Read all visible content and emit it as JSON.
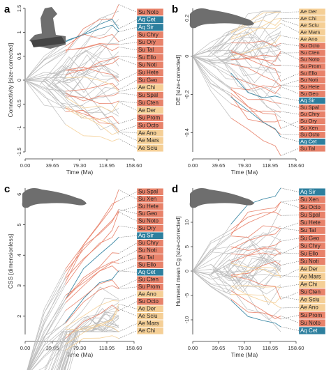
{
  "colors": {
    "su": "#e8826a",
    "ae": "#f5cf96",
    "aq": "#2d7f9e",
    "grey": "#bdbdbd",
    "axis": "#333333",
    "bone": "#6e6e6e"
  },
  "chart_data": [
    {
      "panel": "a",
      "type": "line",
      "subtype": "phylomorphospace",
      "xlabel": "Time (Ma)",
      "ylabel": "Connectivity [size-corrected]",
      "xticks": [
        "0.00",
        "39.65",
        "79.30",
        "118.95",
        "158.60"
      ],
      "yticks": [
        "-1.5",
        "-1",
        "-0.5",
        "0",
        "0.5",
        "1",
        "1.5"
      ],
      "ylim": [
        -1.5,
        1.5
      ],
      "icon": "vertebra-icon",
      "tip_labels": [
        "Su Noto",
        "Aq Cet",
        "Aq Sir",
        "Su Chry",
        "Su Ory",
        "Su Tal",
        "Su Ello",
        "Su Noti",
        "Su Hete",
        "Su Geo",
        "Ae Chi",
        "Su Spal",
        "Su Cten",
        "Ae Der",
        "Su Prom",
        "Su Octo",
        "Ae Ano",
        "Ae Mars",
        "Ae Sciu"
      ]
    },
    {
      "panel": "b",
      "type": "line",
      "subtype": "phylomorphospace",
      "xlabel": "Time (Ma)",
      "ylabel": "DE [size-corrected]",
      "xticks": [
        "0.00",
        "39.65",
        "79.30",
        "118.95",
        "158.60"
      ],
      "yticks": [
        "-0.4",
        "-0.2",
        "0",
        "0.2"
      ],
      "ylim": [
        -0.5,
        0.25
      ],
      "icon": "humerus-icon",
      "tip_labels": [
        "Ae Der",
        "Ae Chi",
        "Ae Sciu",
        "Ae Mars",
        "Ae Ano",
        "Su Octo",
        "Su Cten",
        "Su Noto",
        "Su Prom",
        "Su Ello",
        "Su Noti",
        "Su Hete",
        "Su Geo",
        "Aq Sir",
        "Su Spal",
        "Su Chry",
        "Su Ory",
        "Su Xen",
        "Su Octo",
        "Aq Cet",
        "Su Tal"
      ]
    },
    {
      "panel": "c",
      "type": "line",
      "subtype": "phylomorphospace",
      "xlabel": "Time (Ma)",
      "ylabel": "CSS [dimensionless]",
      "xticks": [
        "0.00",
        "39.65",
        "79.30",
        "118.95",
        "158.60"
      ],
      "yticks": [
        "2",
        "3",
        "4",
        "5",
        "6"
      ],
      "ylim": [
        1.4,
        6.2
      ],
      "icon": "humerus-icon",
      "tip_labels": [
        "Su Spal",
        "Su Xen",
        "Su Hete",
        "Su Geo",
        "Su Noto",
        "Su Ory",
        "Aq Sir",
        "Su Chry",
        "Su Noti",
        "Su Tal",
        "Su Ello",
        "Aq Cet",
        "Su Cten",
        "Su Prom",
        "Ae Ano",
        "Su Octo",
        "Ae Der",
        "Ae Sciu",
        "Ae Mars",
        "Ae Chi"
      ]
    },
    {
      "panel": "d",
      "type": "line",
      "subtype": "phylomorphospace",
      "xlabel": "Time (Ma)",
      "ylabel": "Humeral mean Cg [size-corrected]",
      "xticks": [
        "0.00",
        "39.65",
        "79.30",
        "118.95",
        "158.60"
      ],
      "yticks": [
        "-10",
        "-5",
        "0",
        "5",
        "10"
      ],
      "ylim": [
        -13,
        17
      ],
      "icon": "humerus-icon",
      "tip_labels": [
        "Aq Sir",
        "Su Xen",
        "Su Octo",
        "Su Spal",
        "Su Hete",
        "Su Tal",
        "Su Geo",
        "Su Chry",
        "Su Ello",
        "Su Noti",
        "Ae Der",
        "Ae Mars",
        "Ae Chi",
        "Su Cten",
        "Ae Sciu",
        "Ae Ano",
        "Su Prom",
        "Su Noto",
        "Aq Cet"
      ]
    }
  ]
}
